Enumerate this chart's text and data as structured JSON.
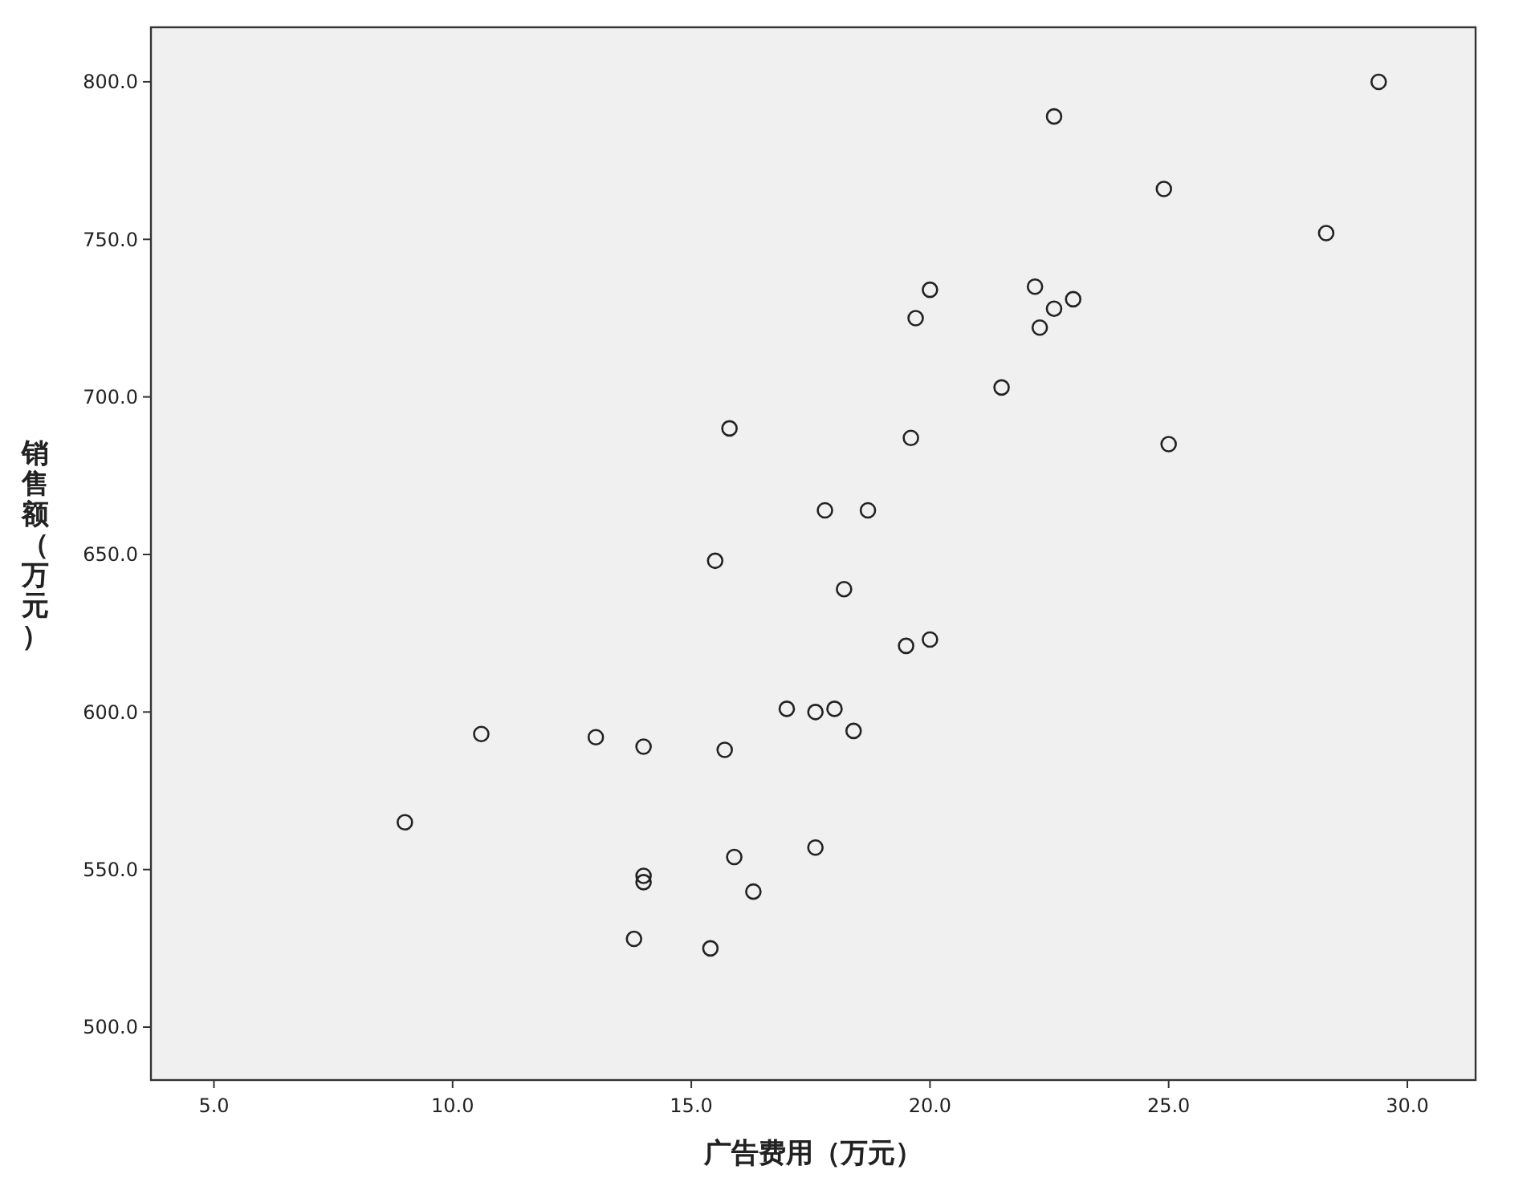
{
  "chart_data": {
    "type": "scatter",
    "xlabel": "广告费用（万元）",
    "ylabel": "销售额（万元）",
    "xlim": [
      3.68,
      31.43
    ],
    "ylim": [
      483.2,
      817.3
    ],
    "xticks": [
      {
        "value": 5,
        "label": "5.0"
      },
      {
        "value": 10,
        "label": "10.0"
      },
      {
        "value": 15,
        "label": "15.0"
      },
      {
        "value": 20,
        "label": "20.0"
      },
      {
        "value": 25,
        "label": "25.0"
      },
      {
        "value": 30,
        "label": "30.0"
      }
    ],
    "yticks": [
      {
        "value": 500,
        "label": "500.0"
      },
      {
        "value": 550,
        "label": "550.0"
      },
      {
        "value": 600,
        "label": "600.0"
      },
      {
        "value": 650,
        "label": "650.0"
      },
      {
        "value": 700,
        "label": "700.0"
      },
      {
        "value": 750,
        "label": "750.0"
      },
      {
        "value": 800,
        "label": "800.0"
      }
    ],
    "grid": false,
    "marker": "circle",
    "series": [
      {
        "color": "#222222",
        "x": [
          29.4,
          22.6,
          24.9,
          28.3,
          20.0,
          22.2,
          23.0,
          22.6,
          19.7,
          22.3,
          21.5,
          15.8,
          19.6,
          25.0,
          17.8,
          18.7,
          15.5,
          18.2,
          20.0,
          19.5,
          17.0,
          17.6,
          18.0,
          10.6,
          13.0,
          18.4,
          14.0,
          15.7,
          9.0,
          17.6,
          15.9,
          14.0,
          14.0,
          16.3,
          13.8,
          15.4
        ],
        "values": [
          800,
          789,
          766,
          752,
          734,
          735,
          731,
          728,
          725,
          722,
          703,
          690,
          687,
          685,
          664,
          664,
          648,
          639,
          623,
          621,
          601,
          600,
          601,
          593,
          592,
          594,
          589,
          588,
          565,
          557,
          554,
          548,
          546,
          543,
          528,
          525
        ]
      }
    ]
  }
}
